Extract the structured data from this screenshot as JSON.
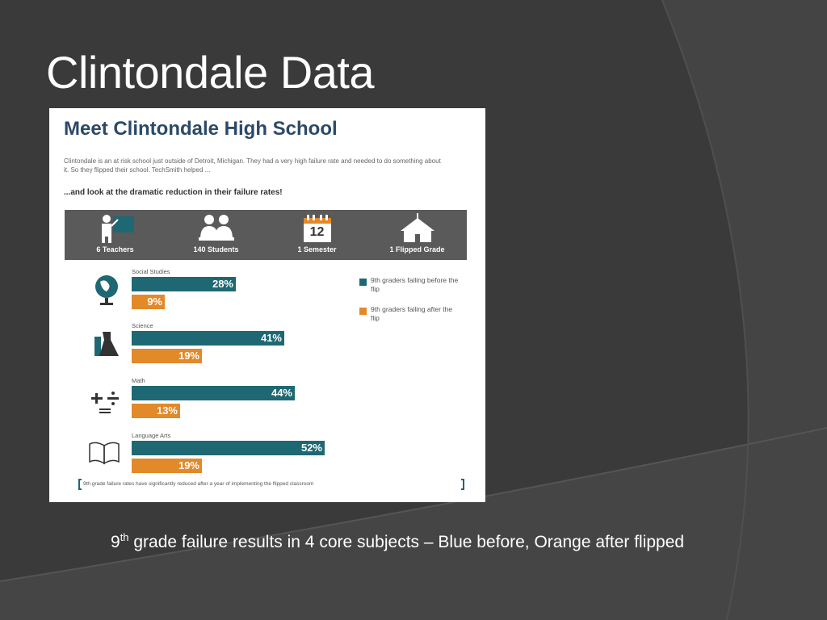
{
  "slide": {
    "title": "Clintondale Data",
    "caption": {
      "number": "9",
      "superscript": "th",
      "text": " grade failure results in 4 core subjects – Blue before, Orange after flipped"
    }
  },
  "colors": {
    "background": "#3a3a3a",
    "before": "#1e6873",
    "after": "#e2892a",
    "band": "#5a5a5a",
    "heading": "#2c4a66"
  },
  "infographic": {
    "title": "Meet Clintondale High School",
    "intro": "Clintondale is an at risk school just outside of Detroit, Michigan. They had a very high failure rate and needed to do something about it. So they flipped their school. TechSmith helped ...",
    "callout": "...and look at the dramatic reduction in their failure rates!",
    "stats": [
      {
        "icon": "teacher-icon",
        "label": "6 Teachers"
      },
      {
        "icon": "students-icon",
        "label": "140 Students"
      },
      {
        "icon": "calendar-icon",
        "label": "1 Semester",
        "number": "12"
      },
      {
        "icon": "school-icon",
        "label": "1 Flipped Grade"
      }
    ],
    "legend": [
      {
        "label": "9th graders failing before the flip",
        "color": "#1e6873"
      },
      {
        "label": "9th graders failing after the flip",
        "color": "#e2892a"
      }
    ],
    "footnote": "9th grade failure rates have significantly reduced after a year of implementing the flipped classroom"
  },
  "chart_data": {
    "type": "bar",
    "orientation": "horizontal",
    "categories": [
      "Social Studies",
      "Science",
      "Math",
      "Language Arts"
    ],
    "series": [
      {
        "name": "9th graders failing before the flip",
        "values": [
          28,
          41,
          44,
          52
        ],
        "labels": [
          "28%",
          "41%",
          "44%",
          "52%"
        ]
      },
      {
        "name": "9th graders failing after the flip",
        "values": [
          9,
          19,
          13,
          19
        ],
        "labels": [
          "9%",
          "19%",
          "13%",
          "19%"
        ]
      }
    ],
    "xlim": [
      0,
      100
    ],
    "legend": "right",
    "grid": false
  }
}
